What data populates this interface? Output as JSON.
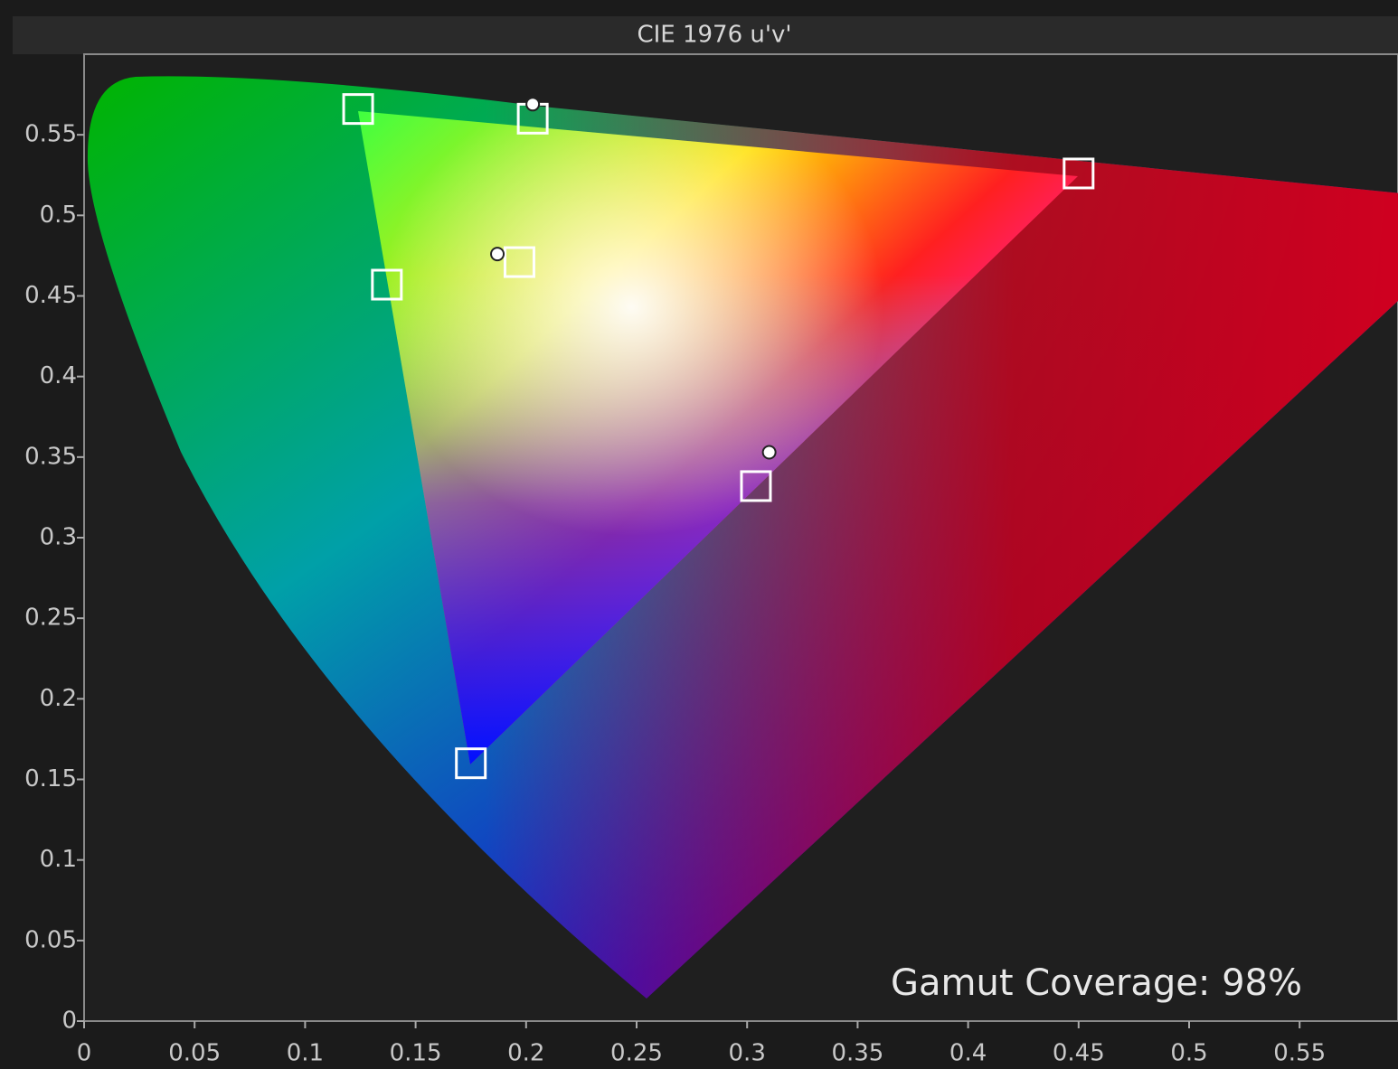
{
  "chart_data": {
    "type": "scatter",
    "title": "CIE 1976 u'v'",
    "xlim": [
      0,
      0.59
    ],
    "ylim": [
      0,
      0.6
    ],
    "xticks": [
      0,
      0.05,
      0.1,
      0.15,
      0.2,
      0.25,
      0.3,
      0.35,
      0.4,
      0.45,
      0.5,
      0.55
    ],
    "yticks": [
      0,
      0.05,
      0.1,
      0.15,
      0.2,
      0.25,
      0.3,
      0.35,
      0.4,
      0.45,
      0.5,
      0.55
    ],
    "series": [
      {
        "color": "#ffffff",
        "marker": "square",
        "x": [
          0.124,
          0.45,
          0.175,
          0.197,
          0.137,
          0.203,
          0.304
        ],
        "values": [
          0.566,
          0.526,
          0.16,
          0.471,
          0.457,
          0.56,
          0.332
        ]
      },
      {
        "color": "#ffffff",
        "marker": "circle",
        "x": [
          0.187,
          0.203,
          0.31
        ],
        "values": [
          0.476,
          0.569,
          0.353
        ]
      }
    ],
    "annotations": [
      "Gamut Coverage:  98%"
    ]
  }
}
